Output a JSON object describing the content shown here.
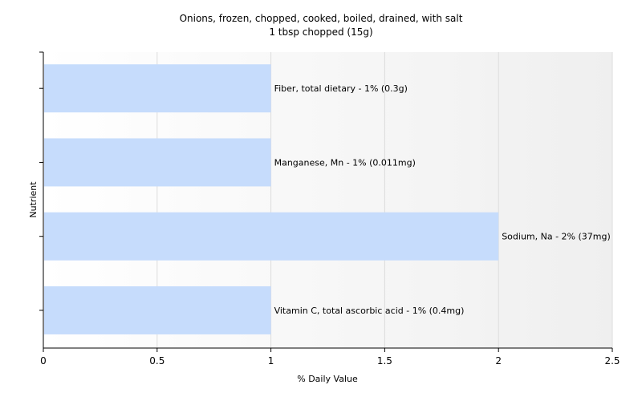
{
  "chart_data": {
    "type": "bar",
    "orientation": "horizontal",
    "title": "Onions, frozen, chopped, cooked, boiled, drained, with salt",
    "subtitle": "1 tbsp chopped (15g)",
    "xlabel": "% Daily Value",
    "ylabel": "Nutrient",
    "xlim": [
      0,
      2.5
    ],
    "xticks": [
      "0",
      "0.5",
      "1",
      "1.5",
      "2",
      "2.5"
    ],
    "grid": true,
    "bar_color": "#c6dcfc",
    "categories": [
      "Fiber, total dietary",
      "Manganese, Mn",
      "Sodium, Na",
      "Vitamin C, total ascorbic acid"
    ],
    "values": [
      1,
      1,
      2,
      1
    ],
    "labels": [
      "Fiber, total dietary - 1% (0.3g)",
      "Manganese, Mn - 1% (0.011mg)",
      "Sodium, Na - 2% (37mg)",
      "Vitamin C, total ascorbic acid - 1% (0.4mg)"
    ]
  }
}
